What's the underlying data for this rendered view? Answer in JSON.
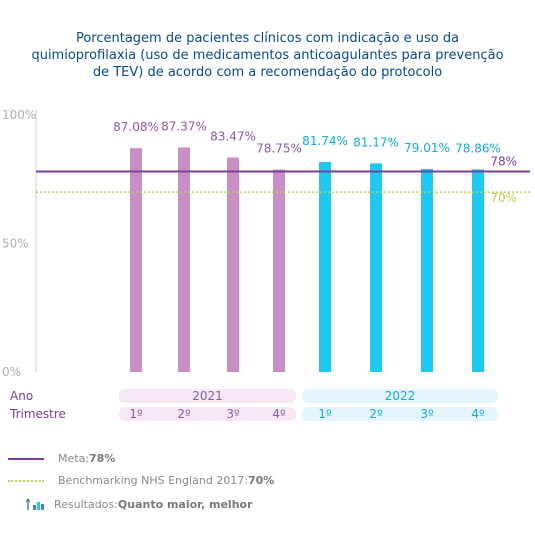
{
  "chart_data": {
    "type": "bar",
    "title": "Porcentagem de pacientes clínicos com indicação e uso da quimioprofilaxia (uso de medicamentos anticoagulantes para prevenção de TEV) de acordo com a recomendação do protocolo",
    "yticks": [
      "100%",
      "50%",
      "0%"
    ],
    "ylim": [
      0,
      100
    ],
    "row_labels": {
      "year": "Ano",
      "quarter": "Trimestre"
    },
    "groups": [
      {
        "name": "2021",
        "color": "#c98fc4",
        "label_color": "#8e5aa8",
        "fill": "#f6e9f5"
      },
      {
        "name": "2022",
        "color": "#1ec8f0",
        "label_color": "#14a9dd",
        "fill": "#e3f6fc"
      }
    ],
    "categories": [
      "1º",
      "2º",
      "3º",
      "4º",
      "1º",
      "2º",
      "3º",
      "4º"
    ],
    "values": [
      87.08,
      87.37,
      83.47,
      78.75,
      81.74,
      81.17,
      79.01,
      78.86
    ],
    "value_labels": [
      "87.08%",
      "87.37%",
      "83.47%",
      "78.75%",
      "81.74%",
      "81.17%",
      "79.01%",
      "78.86%"
    ],
    "group_index": [
      0,
      0,
      0,
      0,
      1,
      1,
      1,
      1
    ],
    "reference_lines": [
      {
        "value": 78,
        "label": "78%",
        "color": "#7a3f9d",
        "style": "solid"
      },
      {
        "value": 70,
        "label": "70%",
        "color": "#b8d15a",
        "style": "dotted"
      }
    ],
    "grid": false
  },
  "legend": {
    "meta": {
      "text": "Meta: ",
      "value": "78%"
    },
    "benchmark": {
      "text": "Benchmarking NHS England 2017: ",
      "value": "70%"
    },
    "results": {
      "text": "Resultados: ",
      "value": "Quanto maior, melhor"
    }
  }
}
